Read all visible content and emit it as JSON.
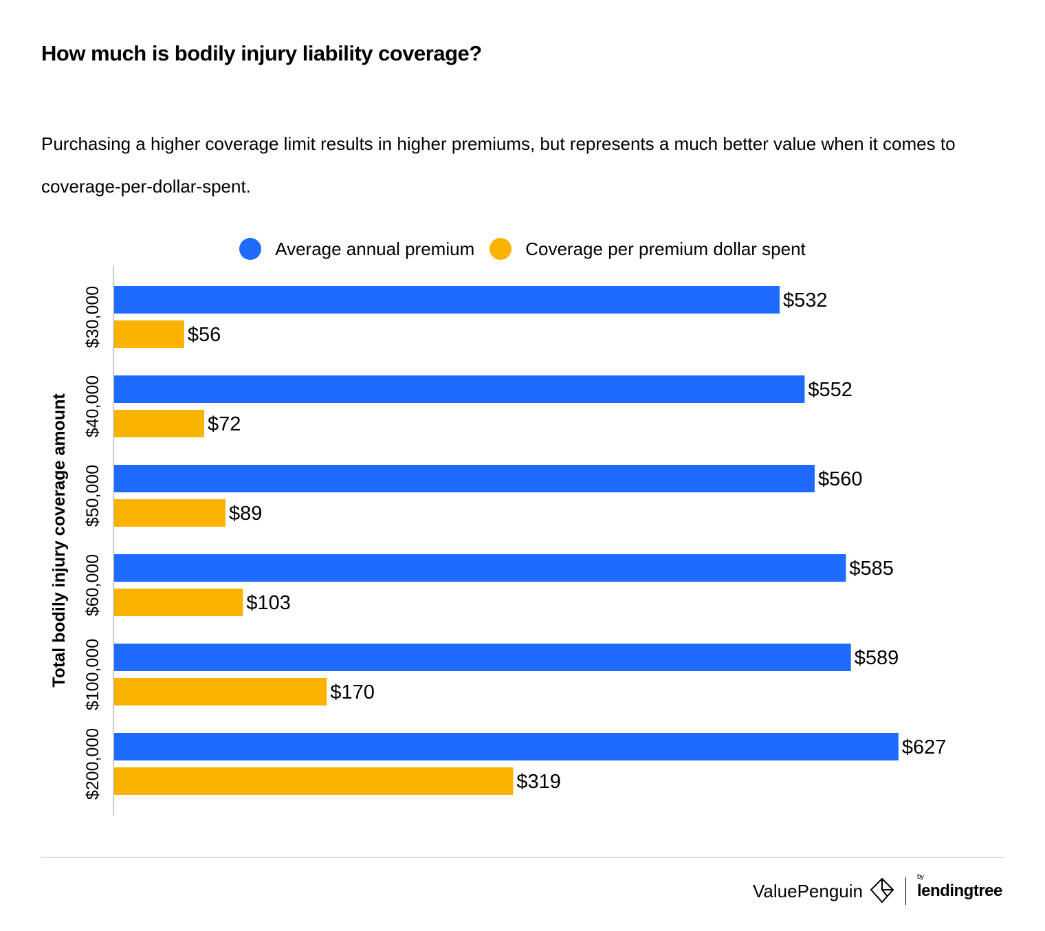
{
  "chart_data": {
    "type": "bar",
    "orientation": "horizontal",
    "title": "How much is bodily injury liability coverage?",
    "subtitle": "Purchasing a higher coverage limit results in higher premiums, but represents a much better value when it comes to coverage-per-dollar-spent.",
    "ylabel": "Total bodily injury coverage amount",
    "xlabel": "",
    "categories": [
      "$30,000",
      "$40,000",
      "$50,000",
      "$60,000",
      "$100,000",
      "$200,000"
    ],
    "series": [
      {
        "name": "Average annual premium",
        "color": "#1f6bff",
        "values": [
          532,
          552,
          560,
          585,
          589,
          627
        ],
        "labels": [
          "$532",
          "$552",
          "$560",
          "$585",
          "$589",
          "$627"
        ]
      },
      {
        "name": "Coverage per premium dollar spent",
        "color": "#f9b300",
        "values": [
          56,
          72,
          89,
          103,
          170,
          319
        ],
        "labels": [
          "$56",
          "$72",
          "$89",
          "$103",
          "$170",
          "$319"
        ]
      }
    ],
    "xlim": [
      0,
      640
    ],
    "grid": false,
    "legend": "top"
  },
  "branding": {
    "brand": "ValuePenguin",
    "by": "by",
    "partner": "lendingtree"
  }
}
